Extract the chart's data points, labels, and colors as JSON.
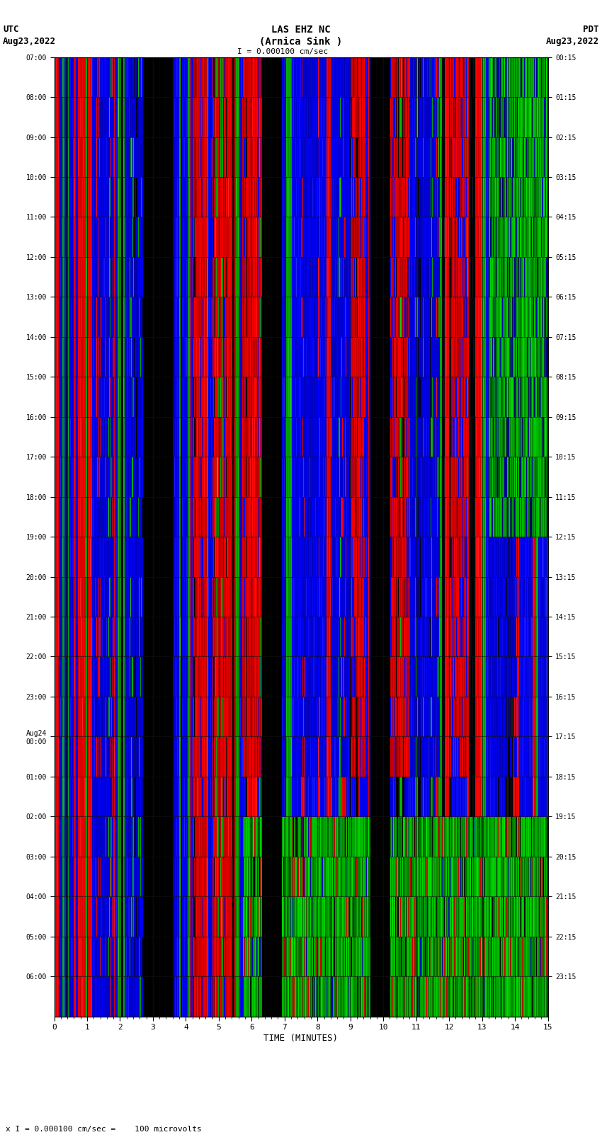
{
  "title_line1": "LAS EHZ NC",
  "title_line2": "(Arnica Sink )",
  "title_scale": "I = 0.000100 cm/sec",
  "left_header1": "UTC",
  "left_header2": "Aug23,2022",
  "right_header1": "PDT",
  "right_header2": "Aug23,2022",
  "left_ytick_labels": [
    "07:00",
    "08:00",
    "09:00",
    "10:00",
    "11:00",
    "12:00",
    "13:00",
    "14:00",
    "15:00",
    "16:00",
    "17:00",
    "18:00",
    "19:00",
    "20:00",
    "21:00",
    "22:00",
    "23:00",
    "Aug24\n00:00",
    "01:00",
    "02:00",
    "03:00",
    "04:00",
    "05:00",
    "06:00"
  ],
  "right_ytick_labels": [
    "00:15",
    "01:15",
    "02:15",
    "03:15",
    "04:15",
    "05:15",
    "06:15",
    "07:15",
    "08:15",
    "09:15",
    "10:15",
    "11:15",
    "12:15",
    "13:15",
    "14:15",
    "15:15",
    "16:15",
    "17:15",
    "18:15",
    "19:15",
    "20:15",
    "21:15",
    "22:15",
    "23:15"
  ],
  "xlabel": "TIME (MINUTES)",
  "xtick_values": [
    0,
    1,
    2,
    3,
    4,
    5,
    6,
    7,
    8,
    9,
    10,
    11,
    12,
    13,
    14,
    15
  ],
  "bottom_note": "x I = 0.000100 cm/sec =    100 microvolts",
  "fig_width": 8.5,
  "fig_height": 16.13,
  "dpi": 100,
  "num_rows": 24,
  "num_cols": 750,
  "background_color": "#ffffff"
}
